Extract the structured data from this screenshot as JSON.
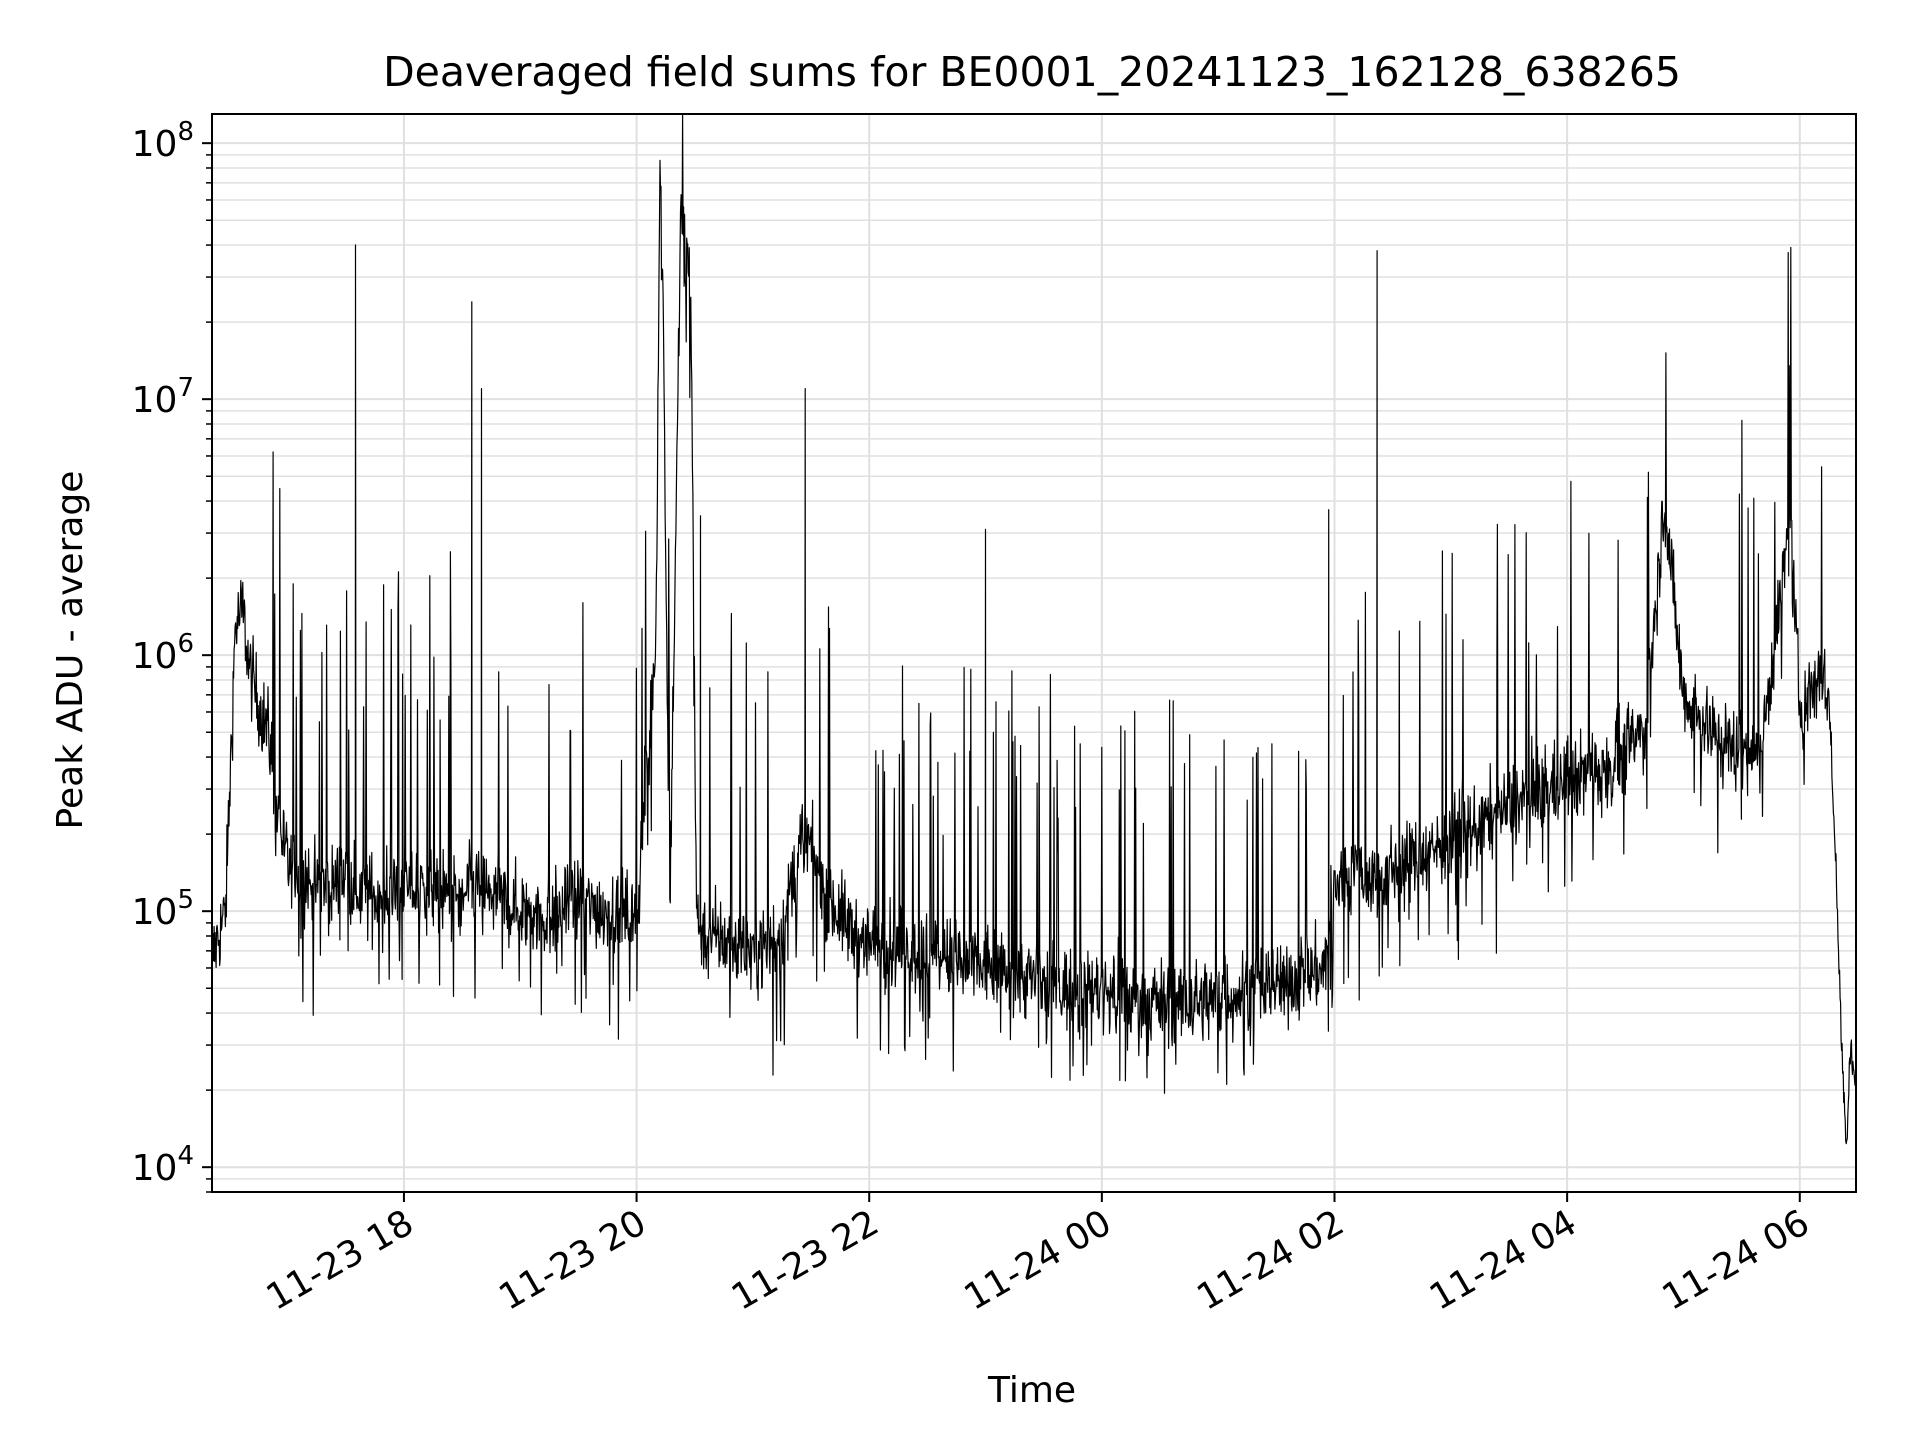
{
  "chart_data": {
    "type": "line",
    "title": "Deaveraged field sums for BE0001_20241123_162128_638265",
    "xlabel": "Time",
    "ylabel": "Peak ADU - average",
    "yscale": "log",
    "ylim": [
      8000,
      130000000
    ],
    "xlim": [
      "2024-11-23 16:21",
      "2024-11-24 06:29"
    ],
    "grid": true,
    "legend": "none",
    "line_color": "#000000",
    "grid_color": "#e0e0e0",
    "x_ticks": [
      {
        "label": "11-23 18",
        "time": "2024-11-23 18:00"
      },
      {
        "label": "11-23 20",
        "time": "2024-11-23 20:00"
      },
      {
        "label": "11-23 22",
        "time": "2024-11-23 22:00"
      },
      {
        "label": "11-24 00",
        "time": "2024-11-24 00:00"
      },
      {
        "label": "11-24 02",
        "time": "2024-11-24 02:00"
      },
      {
        "label": "11-24 04",
        "time": "2024-11-24 04:00"
      },
      {
        "label": "11-24 06",
        "time": "2024-11-24 06:00"
      }
    ],
    "y_ticks": [
      {
        "base": "10",
        "exp": "4",
        "value": 10000
      },
      {
        "base": "10",
        "exp": "5",
        "value": 100000
      },
      {
        "base": "10",
        "exp": "6",
        "value": 1000000
      },
      {
        "base": "10",
        "exp": "7",
        "value": 10000000
      },
      {
        "base": "10",
        "exp": "8",
        "value": 100000000
      }
    ],
    "series": [
      {
        "points": [
          [
            "2024-11-23 16:21",
            65000
          ],
          [
            "2024-11-23 16:28",
            100000
          ],
          [
            "2024-11-23 16:33",
            1300000
          ],
          [
            "2024-11-23 16:37",
            1500000
          ],
          [
            "2024-11-23 16:40",
            900000
          ],
          [
            "2024-11-23 16:45",
            650000
          ],
          [
            "2024-11-23 16:50",
            500000
          ],
          [
            "2024-11-23 16:55",
            250000
          ],
          [
            "2024-11-23 17:00",
            150000
          ],
          [
            "2024-11-23 17:10",
            130000
          ],
          [
            "2024-11-23 17:20",
            120000
          ],
          [
            "2024-11-23 17:30",
            140000
          ],
          [
            "2024-11-23 17:35",
            40000000
          ],
          [
            "2024-11-23 17:38",
            120000
          ],
          [
            "2024-11-23 17:50",
            110000
          ],
          [
            "2024-11-23 18:00",
            125000
          ],
          [
            "2024-11-23 18:15",
            120000
          ],
          [
            "2024-11-23 18:30",
            110000
          ],
          [
            "2024-11-23 18:35",
            24000000
          ],
          [
            "2024-11-23 18:37",
            130000
          ],
          [
            "2024-11-23 18:40",
            11000000
          ],
          [
            "2024-11-23 18:42",
            120000
          ],
          [
            "2024-11-23 19:00",
            100000
          ],
          [
            "2024-11-23 19:15",
            95000
          ],
          [
            "2024-11-23 19:30",
            110000
          ],
          [
            "2024-11-23 19:45",
            100000
          ],
          [
            "2024-11-23 20:00",
            95000
          ],
          [
            "2024-11-23 20:10",
            1200000
          ],
          [
            "2024-11-23 20:12",
            85000000
          ],
          [
            "2024-11-23 20:14",
            19000000
          ],
          [
            "2024-11-23 20:17",
            90000
          ],
          [
            "2024-11-23 20:23",
            62000000
          ],
          [
            "2024-11-23 20:25",
            36000000
          ],
          [
            "2024-11-23 20:28",
            30000000
          ],
          [
            "2024-11-23 20:31",
            90000
          ],
          [
            "2024-11-23 20:33",
            3500000
          ],
          [
            "2024-11-23 20:36",
            80000
          ],
          [
            "2024-11-23 20:50",
            75000
          ],
          [
            "2024-11-23 21:00",
            70000
          ],
          [
            "2024-11-23 21:15",
            80000
          ],
          [
            "2024-11-23 21:25",
            190000
          ],
          [
            "2024-11-23 21:27",
            11000000
          ],
          [
            "2024-11-23 21:29",
            180000
          ],
          [
            "2024-11-23 21:40",
            110000
          ],
          [
            "2024-11-23 21:50",
            85000
          ],
          [
            "2024-11-23 22:00",
            75000
          ],
          [
            "2024-11-23 22:20",
            70000
          ],
          [
            "2024-11-23 22:40",
            65000
          ],
          [
            "2024-11-23 22:58",
            60000
          ],
          [
            "2024-11-23 23:00",
            3100000
          ],
          [
            "2024-11-23 23:02",
            62000
          ],
          [
            "2024-11-23 23:20",
            55000
          ],
          [
            "2024-11-23 23:40",
            50000
          ],
          [
            "2024-11-24 00:00",
            48000
          ],
          [
            "2024-11-24 00:20",
            45000
          ],
          [
            "2024-11-24 00:40",
            44000
          ],
          [
            "2024-11-24 01:00",
            45000
          ],
          [
            "2024-11-24 01:20",
            50000
          ],
          [
            "2024-11-24 01:40",
            55000
          ],
          [
            "2024-11-24 01:55",
            60000
          ],
          [
            "2024-11-24 01:57",
            3700000
          ],
          [
            "2024-11-24 01:59",
            120000
          ],
          [
            "2024-11-24 02:10",
            150000
          ],
          [
            "2024-11-24 02:20",
            130000
          ],
          [
            "2024-11-24 02:22",
            38000000
          ],
          [
            "2024-11-24 02:24",
            140000
          ],
          [
            "2024-11-24 02:40",
            160000
          ],
          [
            "2024-11-24 03:00",
            190000
          ],
          [
            "2024-11-24 03:20",
            230000
          ],
          [
            "2024-11-24 03:40",
            280000
          ],
          [
            "2024-11-24 04:00",
            320000
          ],
          [
            "2024-11-24 04:20",
            380000
          ],
          [
            "2024-11-24 04:40",
            500000
          ],
          [
            "2024-11-24 04:50",
            4000000
          ],
          [
            "2024-11-24 05:00",
            700000
          ],
          [
            "2024-11-24 05:20",
            450000
          ],
          [
            "2024-11-24 05:40",
            420000
          ],
          [
            "2024-11-24 05:55",
            3300000
          ],
          [
            "2024-11-24 06:00",
            600000
          ],
          [
            "2024-11-24 06:10",
            850000
          ],
          [
            "2024-11-24 06:15",
            700000
          ],
          [
            "2024-11-24 06:18",
            200000
          ],
          [
            "2024-11-24 06:22",
            25000
          ],
          [
            "2024-11-24 06:24",
            12000
          ],
          [
            "2024-11-24 06:26",
            30000
          ],
          [
            "2024-11-24 06:29",
            22000
          ]
        ]
      }
    ]
  }
}
